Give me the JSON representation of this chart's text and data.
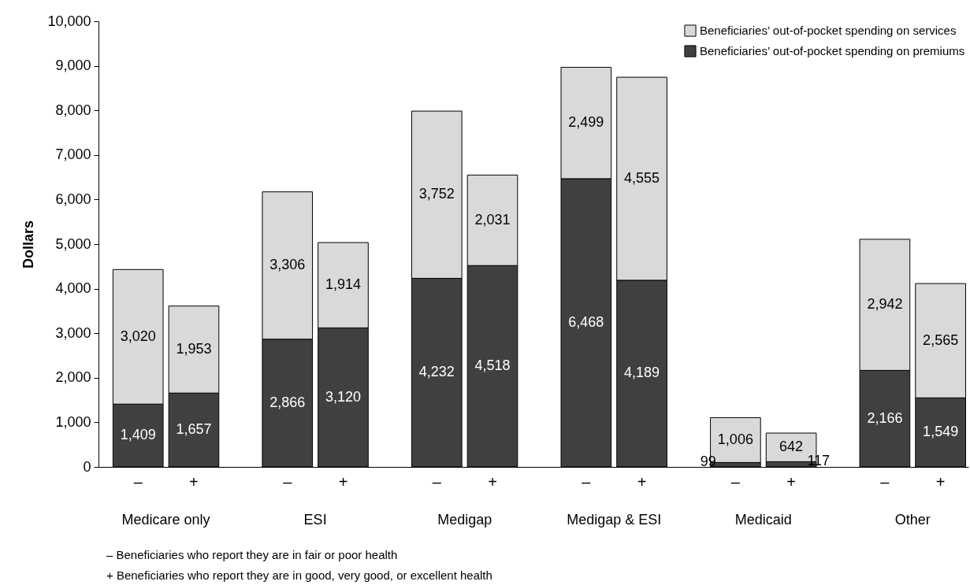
{
  "chart_data": {
    "type": "bar",
    "stacked": true,
    "ylabel": "Dollars",
    "categories": [
      "–",
      "+",
      "–",
      "+",
      "–",
      "+",
      "–",
      "+",
      "–",
      "+",
      "–",
      "+"
    ],
    "series": [
      {
        "name": "Beneficiaries’ out-of-pocket spending on premiums",
        "color": "#404040",
        "values": [
          1409,
          1657,
          2866,
          3120,
          4232,
          4518,
          6468,
          4189,
          99,
          117,
          2166,
          1549
        ],
        "value_labels": [
          "1,409",
          "1,657",
          "2,866",
          "3,120",
          "4,232",
          "4,518",
          "6,468",
          "4,189",
          "99",
          "117",
          "2,166",
          "1,549"
        ]
      },
      {
        "name": "Beneficiaries’ out-of-pocket spending on services",
        "color": "#d9d9d9",
        "values": [
          3020,
          1953,
          3306,
          1914,
          3752,
          2031,
          2499,
          4555,
          1006,
          642,
          2942,
          2565
        ],
        "value_labels": [
          "3,020",
          "1,953",
          "3,306",
          "1,914",
          "3,752",
          "2,031",
          "2,499",
          "4,555",
          "1,006",
          "642",
          "2,942",
          "2,565"
        ]
      }
    ],
    "ylim": [
      0,
      10000
    ],
    "yticks": [
      0,
      {
        "value": 1000,
        "label": "1,000"
      },
      {
        "value": 2000,
        "label": "2,000"
      },
      {
        "value": 3000,
        "label": "3,000"
      },
      {
        "value": 4000,
        "label": "4,000"
      },
      {
        "value": 5000,
        "label": "5,000"
      },
      {
        "value": 6000,
        "label": "6,000"
      },
      {
        "value": 7000,
        "label": "7,000"
      },
      {
        "value": 8000,
        "label": "8,000"
      },
      {
        "value": 9000,
        "label": "9,000"
      },
      {
        "value": 10000,
        "label": "10,000"
      }
    ],
    "legend": "top right",
    "annotations": [
      "Medicare only",
      "ESI",
      "Medigap",
      "Medigap & ESI",
      "Medicaid",
      "Other",
      "– Beneficiaries who report they are in fair or poor health",
      "+ Beneficiaries who report they are in good, very good, or excellent health"
    ]
  }
}
